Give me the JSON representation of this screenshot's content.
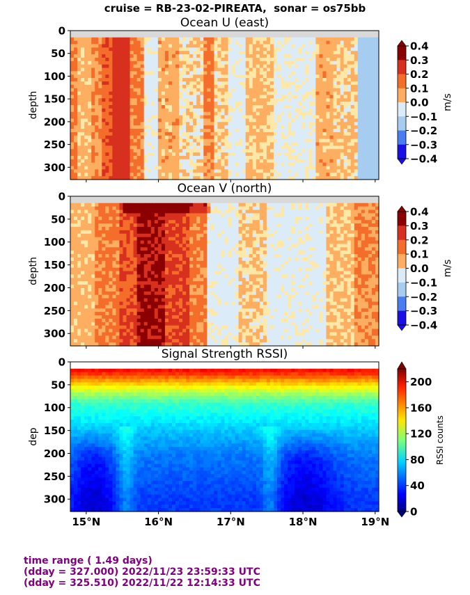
{
  "suptitle": "cruise = RB-23-02-PIREATA,  sonar = os75bb",
  "footer": {
    "line1": "time range ( 1.49 days)",
    "line2": "(dday = 327.000) 2022/11/23 23:59:33 UTC",
    "line3": "(dday = 325.510) 2022/11/22 12:14:33 UTC"
  },
  "colors": {
    "footer_text": "#800080",
    "nodata_band": "#d9d9d9"
  },
  "chart_data": [
    {
      "type": "heatmap",
      "title": "Ocean U (east)",
      "ylabel": "depth",
      "y_ticks": [
        "0",
        "50",
        "100",
        "150",
        "200",
        "250",
        "300"
      ],
      "y_tick_values": [
        0,
        50,
        100,
        150,
        200,
        250,
        300
      ],
      "ylim": [
        327,
        0
      ],
      "xlim": [
        14.78,
        19.05
      ],
      "x_tick_values": [
        15,
        16,
        17,
        18,
        19
      ],
      "colorbar": {
        "label": "m/s",
        "ticks": [
          "0.4",
          "0.3",
          "0.2",
          "0.1",
          "0.0",
          "−0.1",
          "−0.2",
          "−0.3",
          "−0.4"
        ],
        "levels": [
          0.4,
          0.3,
          0.2,
          0.1,
          0.0,
          -0.1,
          -0.2,
          -0.3,
          -0.4
        ],
        "colors": [
          "#8b0000",
          "#d7301f",
          "#f46d2a",
          "#fdae61",
          "#fee8a8",
          "#dbecf8",
          "#a6ccf0",
          "#4a7df0",
          "#1a10e6"
        ]
      },
      "vertical_bands": [
        {
          "lat_range": [
            14.78,
            14.88
          ],
          "value": 0.12
        },
        {
          "lat_range": [
            14.88,
            15.05
          ],
          "value": 0.05
        },
        {
          "lat_range": [
            15.05,
            15.2
          ],
          "value": 0.1
        },
        {
          "lat_range": [
            15.2,
            15.38
          ],
          "value": 0.18
        },
        {
          "lat_range": [
            15.38,
            15.62
          ],
          "value": 0.25
        },
        {
          "lat_range": [
            15.62,
            15.8
          ],
          "value": 0.12
        },
        {
          "lat_range": [
            15.8,
            16.0
          ],
          "value": -0.05
        },
        {
          "lat_range": [
            16.0,
            16.3
          ],
          "value": 0.06
        },
        {
          "lat_range": [
            16.3,
            16.6
          ],
          "value": 0.0
        },
        {
          "lat_range": [
            16.6,
            16.75
          ],
          "value": 0.12
        },
        {
          "lat_range": [
            16.75,
            16.95
          ],
          "value": 0.02
        },
        {
          "lat_range": [
            16.95,
            17.2
          ],
          "value": -0.05
        },
        {
          "lat_range": [
            17.2,
            17.6
          ],
          "value": 0.03
        },
        {
          "lat_range": [
            17.6,
            18.2
          ],
          "value": -0.04
        },
        {
          "lat_range": [
            18.2,
            18.4
          ],
          "value": 0.06
        },
        {
          "lat_range": [
            18.4,
            18.75
          ],
          "value": 0.02
        },
        {
          "lat_range": [
            18.75,
            19.05
          ],
          "value": -0.15
        }
      ]
    },
    {
      "type": "heatmap",
      "title": "Ocean V (north)",
      "ylabel": "depth",
      "y_ticks": [
        "0",
        "50",
        "100",
        "150",
        "200",
        "250",
        "300"
      ],
      "y_tick_values": [
        0,
        50,
        100,
        150,
        200,
        250,
        300
      ],
      "ylim": [
        327,
        0
      ],
      "xlim": [
        14.78,
        19.05
      ],
      "x_tick_values": [
        15,
        16,
        17,
        18,
        19
      ],
      "colorbar": {
        "label": "m/s",
        "ticks": [
          "0.4",
          "0.3",
          "0.2",
          "0.1",
          "0.0",
          "−0.1",
          "−0.2",
          "−0.3",
          "−0.4"
        ],
        "levels": [
          0.4,
          0.3,
          0.2,
          0.1,
          0.0,
          -0.1,
          -0.2,
          -0.3,
          -0.4
        ],
        "colors": [
          "#8b0000",
          "#d7301f",
          "#f46d2a",
          "#fdae61",
          "#fee8a8",
          "#dbecf8",
          "#a6ccf0",
          "#4a7df0",
          "#1a10e6"
        ]
      },
      "vertical_bands": [
        {
          "lat_range": [
            14.78,
            15.1
          ],
          "value": 0.05
        },
        {
          "lat_range": [
            15.1,
            15.45
          ],
          "value": 0.12
        },
        {
          "lat_range": [
            15.45,
            15.7
          ],
          "value": 0.2
        },
        {
          "lat_range": [
            15.7,
            16.1
          ],
          "value": 0.32
        },
        {
          "lat_range": [
            16.1,
            16.45
          ],
          "value": 0.22
        },
        {
          "lat_range": [
            16.45,
            16.65
          ],
          "value": 0.12
        },
        {
          "lat_range": [
            16.65,
            17.1
          ],
          "value": -0.05
        },
        {
          "lat_range": [
            17.1,
            17.5
          ],
          "value": 0.02
        },
        {
          "lat_range": [
            17.5,
            18.3
          ],
          "value": -0.05
        },
        {
          "lat_range": [
            18.3,
            18.7
          ],
          "value": 0.03
        },
        {
          "lat_range": [
            18.7,
            19.05
          ],
          "value": 0.1
        }
      ]
    },
    {
      "type": "heatmap",
      "title": "Signal Strength RSSI)",
      "ylabel": "dep",
      "y_ticks": [
        "0",
        "50",
        "100",
        "150",
        "200",
        "250",
        "300"
      ],
      "y_tick_values": [
        0,
        50,
        100,
        150,
        200,
        250,
        300
      ],
      "ylim": [
        327,
        0
      ],
      "xlim": [
        14.78,
        19.05
      ],
      "x_ticks": [
        "15°N",
        "16°N",
        "17°N",
        "18°N",
        "19°N"
      ],
      "x_tick_values": [
        15,
        16,
        17,
        18,
        19
      ],
      "colorbar": {
        "label": "RSSI counts",
        "ticks": [
          "200",
          "160",
          "120",
          "80",
          "40",
          "0"
        ],
        "levels": [
          200,
          160,
          120,
          80,
          40,
          0
        ],
        "range": [
          0,
          220
        ]
      },
      "depth_profile": [
        {
          "depth": 20,
          "value": 190
        },
        {
          "depth": 40,
          "value": 160
        },
        {
          "depth": 60,
          "value": 130
        },
        {
          "depth": 90,
          "value": 95
        },
        {
          "depth": 150,
          "value": 70
        },
        {
          "depth": 200,
          "value": 55
        },
        {
          "depth": 300,
          "value": 40
        }
      ]
    }
  ]
}
